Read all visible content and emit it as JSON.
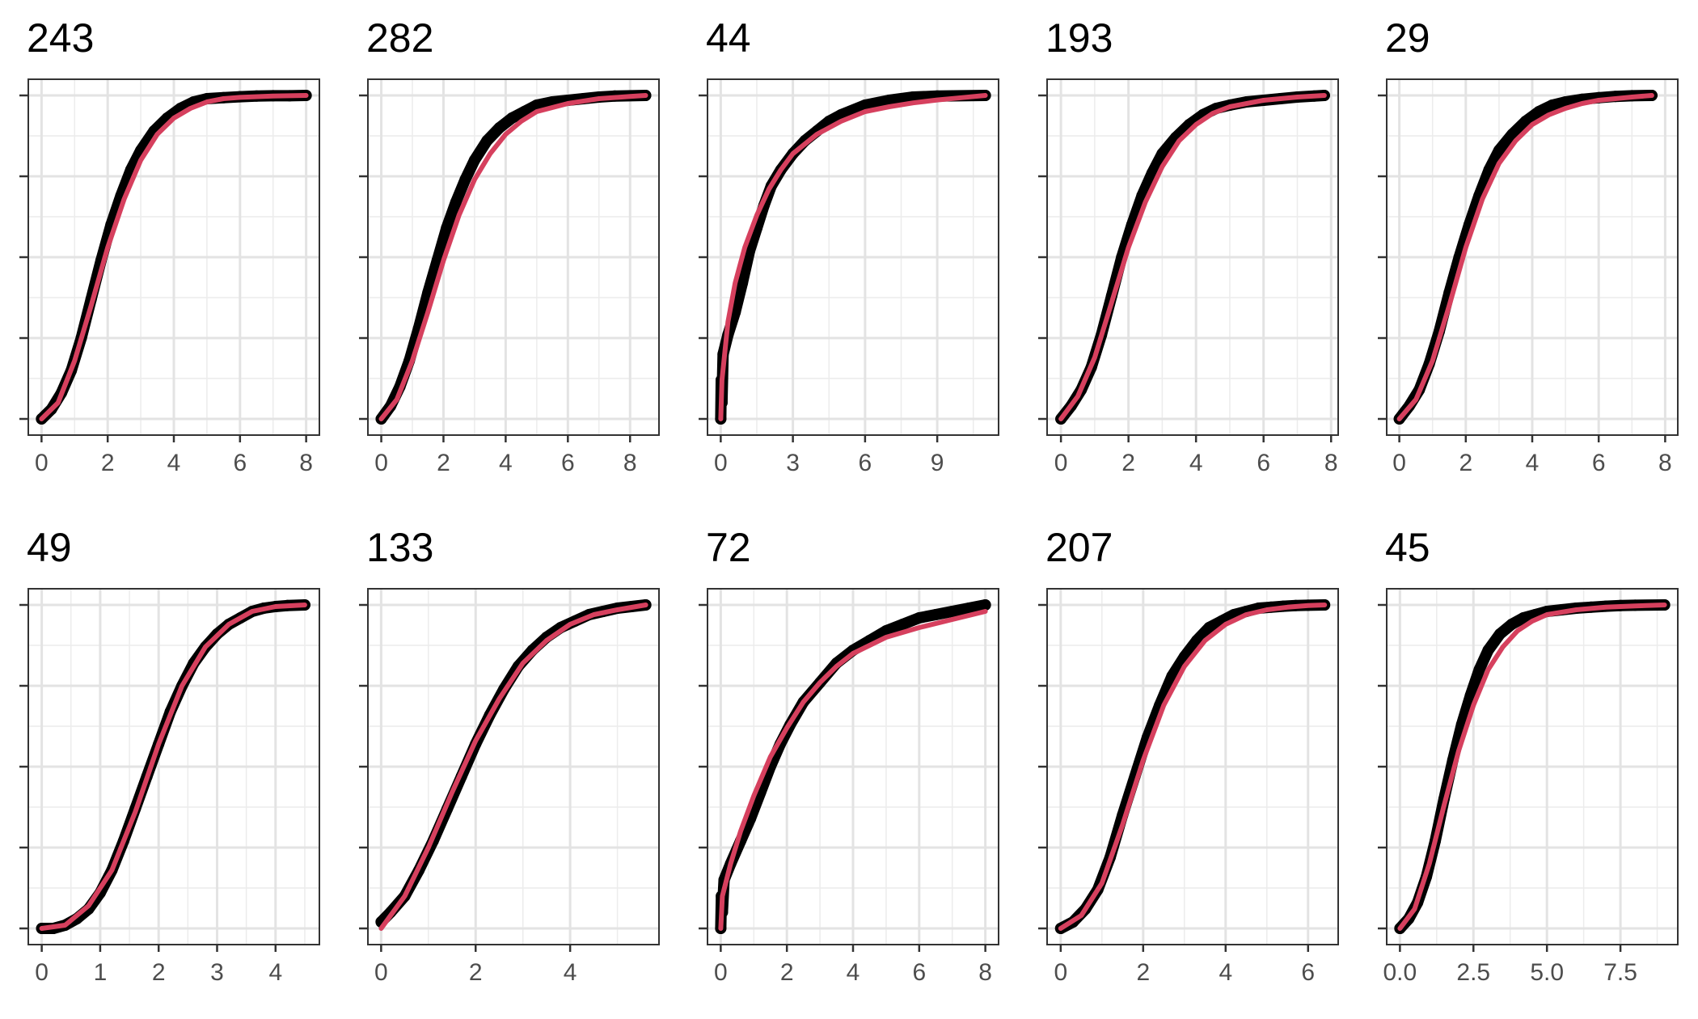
{
  "chart_data": [
    {
      "type": "scatter",
      "title": "243",
      "xticks": [
        0,
        2,
        4,
        6,
        8
      ],
      "xlim": [
        -0.4,
        8.4
      ],
      "ylim": [
        -0.05,
        1.05
      ],
      "yticks": [
        0,
        0.25,
        0.5,
        0.75,
        1
      ],
      "ytick_labels": [
        "",
        "",
        "",
        "",
        ""
      ],
      "grid": true,
      "series": [
        {
          "type": "scatter",
          "x": [
            0,
            0.3,
            0.6,
            0.9,
            1.2,
            1.5,
            1.8,
            2.1,
            2.4,
            2.7,
            3.0,
            3.4,
            3.8,
            4.2,
            4.6,
            5.0,
            5.5,
            6.0,
            6.5,
            7.0,
            7.5,
            8.0
          ],
          "y": [
            0,
            0.03,
            0.08,
            0.15,
            0.25,
            0.37,
            0.49,
            0.6,
            0.69,
            0.77,
            0.83,
            0.89,
            0.93,
            0.96,
            0.98,
            0.99,
            0.993,
            0.996,
            0.998,
            0.999,
            0.999,
            1
          ]
        },
        {
          "type": "line",
          "color": "#d6405e",
          "x": [
            0,
            0.5,
            1.0,
            1.5,
            2.0,
            2.5,
            3.0,
            3.5,
            4.0,
            4.5,
            5.0,
            5.5,
            6.0,
            7.0,
            8.0
          ],
          "y": [
            0,
            0.05,
            0.18,
            0.35,
            0.53,
            0.68,
            0.8,
            0.88,
            0.93,
            0.96,
            0.98,
            0.99,
            0.994,
            0.998,
            1
          ]
        }
      ]
    },
    {
      "type": "scatter",
      "title": "282",
      "xticks": [
        0,
        2,
        4,
        6,
        8
      ],
      "xlim": [
        -0.43,
        8.93
      ],
      "ylim": [
        -0.05,
        1.05
      ],
      "yticks": [
        0,
        0.25,
        0.5,
        0.75,
        1
      ],
      "ytick_labels": [
        "",
        "",
        "",
        "",
        ""
      ],
      "grid": true,
      "series": [
        {
          "type": "scatter",
          "x": [
            0,
            0.3,
            0.6,
            0.9,
            1.2,
            1.5,
            1.8,
            2.1,
            2.4,
            2.7,
            3.0,
            3.4,
            3.8,
            4.2,
            4.6,
            5.0,
            5.5,
            6.0,
            6.5,
            7.0,
            7.5,
            8.5
          ],
          "y": [
            0,
            0.04,
            0.1,
            0.18,
            0.28,
            0.39,
            0.49,
            0.59,
            0.67,
            0.74,
            0.8,
            0.86,
            0.9,
            0.93,
            0.95,
            0.97,
            0.98,
            0.985,
            0.99,
            0.995,
            0.998,
            1
          ]
        },
        {
          "type": "line",
          "color": "#d6405e",
          "x": [
            0,
            0.5,
            1.0,
            1.5,
            2.0,
            2.5,
            3.0,
            3.5,
            4.0,
            4.5,
            5.0,
            6.0,
            7.0,
            8.0,
            8.5
          ],
          "y": [
            0,
            0.06,
            0.18,
            0.33,
            0.49,
            0.63,
            0.74,
            0.82,
            0.88,
            0.92,
            0.95,
            0.975,
            0.99,
            0.997,
            1
          ]
        }
      ]
    },
    {
      "type": "scatter",
      "title": "44",
      "xticks": [
        0,
        3,
        6,
        9
      ],
      "xlim": [
        -0.55,
        11.55
      ],
      "ylim": [
        -0.05,
        1.05
      ],
      "yticks": [
        0,
        0.25,
        0.5,
        0.75,
        1
      ],
      "ytick_labels": [
        "",
        "",
        "",
        "",
        ""
      ],
      "grid": true,
      "series": [
        {
          "type": "scatter",
          "x": [
            0,
            0.02,
            0.05,
            0.1,
            0.3,
            0.6,
            0.9,
            1.2,
            1.5,
            1.8,
            2.1,
            2.5,
            3.0,
            3.5,
            4.0,
            4.5,
            5.0,
            6.0,
            7.0,
            8.0,
            9.0,
            11.0
          ],
          "y": [
            0,
            0.12,
            0.05,
            0.2,
            0.26,
            0.33,
            0.42,
            0.52,
            0.59,
            0.66,
            0.72,
            0.77,
            0.82,
            0.86,
            0.89,
            0.92,
            0.94,
            0.97,
            0.985,
            0.995,
            0.998,
            1
          ]
        },
        {
          "type": "line",
          "color": "#d6405e",
          "x": [
            0,
            0.05,
            0.3,
            0.6,
            1.0,
            1.5,
            2.0,
            2.5,
            3.0,
            4.0,
            5.0,
            6.0,
            7.0,
            8.0,
            9.0,
            10.0,
            11.0
          ],
          "y": [
            0,
            0.12,
            0.3,
            0.42,
            0.53,
            0.63,
            0.71,
            0.77,
            0.82,
            0.88,
            0.92,
            0.95,
            0.965,
            0.977,
            0.986,
            0.993,
            1
          ]
        }
      ]
    },
    {
      "type": "scatter",
      "title": "193",
      "xticks": [
        0,
        2,
        4,
        6,
        8
      ],
      "xlim": [
        -0.41,
        8.21
      ],
      "ylim": [
        -0.05,
        1.05
      ],
      "yticks": [
        0,
        0.25,
        0.5,
        0.75,
        1
      ],
      "ytick_labels": [
        "",
        "",
        "",
        "",
        ""
      ],
      "grid": true,
      "series": [
        {
          "type": "scatter",
          "x": [
            0,
            0.3,
            0.6,
            0.9,
            1.2,
            1.5,
            1.8,
            2.1,
            2.4,
            2.7,
            3.0,
            3.4,
            3.8,
            4.2,
            4.6,
            5.0,
            5.5,
            6.0,
            6.5,
            7.0,
            7.5,
            7.8
          ],
          "y": [
            0,
            0.04,
            0.09,
            0.16,
            0.26,
            0.38,
            0.5,
            0.6,
            0.69,
            0.76,
            0.82,
            0.87,
            0.91,
            0.94,
            0.96,
            0.97,
            0.98,
            0.985,
            0.99,
            0.995,
            0.998,
            1
          ]
        },
        {
          "type": "line",
          "color": "#d6405e",
          "x": [
            0,
            0.5,
            1.0,
            1.5,
            2.0,
            2.5,
            3.0,
            3.5,
            4.0,
            4.5,
            5.0,
            6.0,
            7.0,
            7.8
          ],
          "y": [
            0,
            0.07,
            0.19,
            0.36,
            0.53,
            0.67,
            0.78,
            0.86,
            0.91,
            0.945,
            0.965,
            0.985,
            0.995,
            1
          ]
        }
      ]
    },
    {
      "type": "scatter",
      "title": "29",
      "xticks": [
        0,
        2,
        4,
        6,
        8
      ],
      "xlim": [
        -0.38,
        8.38
      ],
      "ylim": [
        -0.05,
        1.05
      ],
      "yticks": [
        0,
        0.25,
        0.5,
        0.75,
        1
      ],
      "ytick_labels": [
        "",
        "",
        "",
        "",
        ""
      ],
      "grid": true,
      "series": [
        {
          "type": "scatter",
          "x": [
            0,
            0.3,
            0.6,
            0.9,
            1.2,
            1.5,
            1.8,
            2.1,
            2.4,
            2.7,
            3.0,
            3.4,
            3.8,
            4.2,
            4.6,
            5.0,
            5.5,
            6.0,
            6.5,
            7.0,
            7.6
          ],
          "y": [
            0,
            0.04,
            0.09,
            0.17,
            0.27,
            0.39,
            0.5,
            0.6,
            0.69,
            0.77,
            0.83,
            0.88,
            0.92,
            0.95,
            0.97,
            0.98,
            0.988,
            0.993,
            0.997,
            0.999,
            1
          ]
        },
        {
          "type": "line",
          "color": "#d6405e",
          "x": [
            0,
            0.5,
            1.0,
            1.5,
            2.0,
            2.5,
            3.0,
            3.5,
            4.0,
            4.5,
            5.0,
            5.5,
            6.0,
            7.0,
            7.6
          ],
          "y": [
            0,
            0.06,
            0.18,
            0.35,
            0.53,
            0.68,
            0.79,
            0.86,
            0.91,
            0.94,
            0.96,
            0.975,
            0.985,
            0.995,
            1
          ]
        }
      ]
    },
    {
      "type": "scatter",
      "title": "49",
      "xticks": [
        0,
        1,
        2,
        3,
        4
      ],
      "xlim": [
        -0.23,
        4.75
      ],
      "ylim": [
        -0.05,
        1.05
      ],
      "yticks": [
        0,
        0.25,
        0.5,
        0.75,
        1
      ],
      "ytick_labels": [
        "",
        "",
        "",
        "",
        ""
      ],
      "grid": true,
      "series": [
        {
          "type": "scatter",
          "x": [
            0,
            0.2,
            0.4,
            0.6,
            0.8,
            1.0,
            1.2,
            1.4,
            1.6,
            1.8,
            2.0,
            2.2,
            2.4,
            2.6,
            2.8,
            3.0,
            3.2,
            3.4,
            3.6,
            3.8,
            4.0,
            4.2,
            4.5
          ],
          "y": [
            0,
            0,
            0.01,
            0.03,
            0.06,
            0.11,
            0.18,
            0.27,
            0.37,
            0.47,
            0.57,
            0.67,
            0.75,
            0.82,
            0.87,
            0.91,
            0.94,
            0.96,
            0.98,
            0.99,
            0.995,
            0.998,
            1
          ]
        },
        {
          "type": "line",
          "color": "#d6405e",
          "x": [
            0,
            0.4,
            0.8,
            1.2,
            1.6,
            2.0,
            2.4,
            2.8,
            3.2,
            3.6,
            4.0,
            4.5
          ],
          "y": [
            0,
            0.01,
            0.07,
            0.18,
            0.36,
            0.57,
            0.75,
            0.87,
            0.94,
            0.98,
            0.995,
            1
          ]
        }
      ]
    },
    {
      "type": "scatter",
      "title": "133",
      "xticks": [
        0,
        2,
        4
      ],
      "xlim": [
        -0.28,
        5.88
      ],
      "ylim": [
        -0.05,
        1.05
      ],
      "yticks": [
        0,
        0.25,
        0.5,
        0.75,
        1
      ],
      "ytick_labels": [
        "",
        "",
        "",
        "",
        ""
      ],
      "grid": true,
      "series": [
        {
          "type": "scatter",
          "x": [
            0,
            0.2,
            0.5,
            0.8,
            1.1,
            1.4,
            1.7,
            2.0,
            2.3,
            2.6,
            2.9,
            3.2,
            3.5,
            3.8,
            4.1,
            4.4,
            4.7,
            5.0,
            5.3,
            5.6
          ],
          "y": [
            0.02,
            0.05,
            0.1,
            0.18,
            0.27,
            0.37,
            0.47,
            0.57,
            0.66,
            0.74,
            0.81,
            0.86,
            0.9,
            0.93,
            0.95,
            0.97,
            0.98,
            0.99,
            0.995,
            1
          ]
        },
        {
          "type": "line",
          "color": "#d6405e",
          "x": [
            0,
            0.5,
            1.0,
            1.5,
            2.0,
            2.5,
            3.0,
            3.5,
            4.0,
            4.5,
            5.0,
            5.6
          ],
          "y": [
            0,
            0.1,
            0.25,
            0.42,
            0.58,
            0.71,
            0.82,
            0.89,
            0.94,
            0.97,
            0.985,
            1
          ]
        }
      ]
    },
    {
      "type": "scatter",
      "title": "72",
      "xticks": [
        0,
        2,
        4,
        6,
        8
      ],
      "xlim": [
        -0.4,
        8.4
      ],
      "ylim": [
        -0.05,
        1.05
      ],
      "yticks": [
        0,
        0.25,
        0.5,
        0.75,
        1
      ],
      "ytick_labels": [
        "",
        "",
        "",
        "",
        ""
      ],
      "grid": true,
      "series": [
        {
          "type": "scatter",
          "x": [
            0,
            0.02,
            0.05,
            0.1,
            0.3,
            0.6,
            0.9,
            1.2,
            1.5,
            1.8,
            2.1,
            2.5,
            3.0,
            3.5,
            4.0,
            4.5,
            5.0,
            5.5,
            6.0,
            6.5,
            7.0,
            7.5,
            8.0
          ],
          "y": [
            0,
            0.1,
            0.05,
            0.15,
            0.2,
            0.27,
            0.34,
            0.42,
            0.5,
            0.57,
            0.63,
            0.7,
            0.76,
            0.82,
            0.86,
            0.89,
            0.92,
            0.94,
            0.96,
            0.97,
            0.98,
            0.99,
            1
          ]
        },
        {
          "type": "line",
          "color": "#d6405e",
          "x": [
            0,
            0.05,
            0.3,
            0.6,
            1.0,
            1.5,
            2.0,
            2.5,
            3.0,
            3.5,
            4.0,
            5.0,
            6.0,
            7.0,
            8.0
          ],
          "y": [
            0,
            0.1,
            0.2,
            0.3,
            0.41,
            0.53,
            0.62,
            0.7,
            0.76,
            0.81,
            0.85,
            0.9,
            0.93,
            0.955,
            0.98
          ]
        }
      ]
    },
    {
      "type": "scatter",
      "title": "207",
      "xticks": [
        0,
        2,
        4,
        6
      ],
      "xlim": [
        -0.33,
        6.73
      ],
      "ylim": [
        -0.05,
        1.05
      ],
      "yticks": [
        0,
        0.25,
        0.5,
        0.75,
        1
      ],
      "ytick_labels": [
        "",
        "",
        "",
        "",
        ""
      ],
      "grid": true,
      "series": [
        {
          "type": "scatter",
          "x": [
            0,
            0.3,
            0.6,
            0.9,
            1.2,
            1.5,
            1.8,
            2.1,
            2.4,
            2.7,
            3.0,
            3.3,
            3.6,
            3.9,
            4.2,
            4.5,
            4.8,
            5.1,
            5.4,
            5.7,
            6.0,
            6.4
          ],
          "y": [
            0,
            0.02,
            0.06,
            0.12,
            0.22,
            0.35,
            0.47,
            0.59,
            0.69,
            0.78,
            0.84,
            0.89,
            0.93,
            0.95,
            0.97,
            0.98,
            0.99,
            0.993,
            0.996,
            0.998,
            0.999,
            1
          ]
        },
        {
          "type": "line",
          "color": "#d6405e",
          "x": [
            0,
            0.5,
            1.0,
            1.5,
            2.0,
            2.5,
            3.0,
            3.5,
            4.0,
            4.5,
            5.0,
            5.5,
            6.0,
            6.4
          ],
          "y": [
            0,
            0.04,
            0.14,
            0.32,
            0.52,
            0.69,
            0.81,
            0.89,
            0.94,
            0.97,
            0.985,
            0.993,
            0.998,
            1
          ]
        }
      ]
    },
    {
      "type": "scatter",
      "title": "45",
      "xticks": [
        0,
        2.5,
        5,
        7.5
      ],
      "xtick_labels": [
        "0.0",
        "2.5",
        "5.0",
        "7.5"
      ],
      "xlim": [
        -0.45,
        9.45
      ],
      "ylim": [
        -0.05,
        1.05
      ],
      "yticks": [
        0,
        0.25,
        0.5,
        0.75,
        1
      ],
      "ytick_labels": [
        "",
        "",
        "",
        "",
        ""
      ],
      "grid": true,
      "series": [
        {
          "type": "scatter",
          "x": [
            0,
            0.3,
            0.6,
            0.9,
            1.2,
            1.5,
            1.8,
            2.1,
            2.4,
            2.7,
            3.0,
            3.4,
            3.8,
            4.2,
            4.6,
            5.0,
            5.5,
            6.0,
            6.5,
            7.0,
            7.5,
            8.0,
            9.0
          ],
          "y": [
            0,
            0.03,
            0.08,
            0.16,
            0.27,
            0.4,
            0.52,
            0.63,
            0.72,
            0.8,
            0.86,
            0.91,
            0.94,
            0.96,
            0.97,
            0.98,
            0.985,
            0.99,
            0.993,
            0.996,
            0.998,
            0.999,
            1
          ]
        },
        {
          "type": "line",
          "color": "#d6405e",
          "x": [
            0,
            0.5,
            1.0,
            1.5,
            2.0,
            2.5,
            3.0,
            3.5,
            4.0,
            4.5,
            5.0,
            6.0,
            7.0,
            8.0,
            9.0
          ],
          "y": [
            0,
            0.06,
            0.2,
            0.38,
            0.55,
            0.69,
            0.8,
            0.87,
            0.92,
            0.95,
            0.97,
            0.985,
            0.993,
            0.997,
            1
          ]
        }
      ]
    }
  ]
}
